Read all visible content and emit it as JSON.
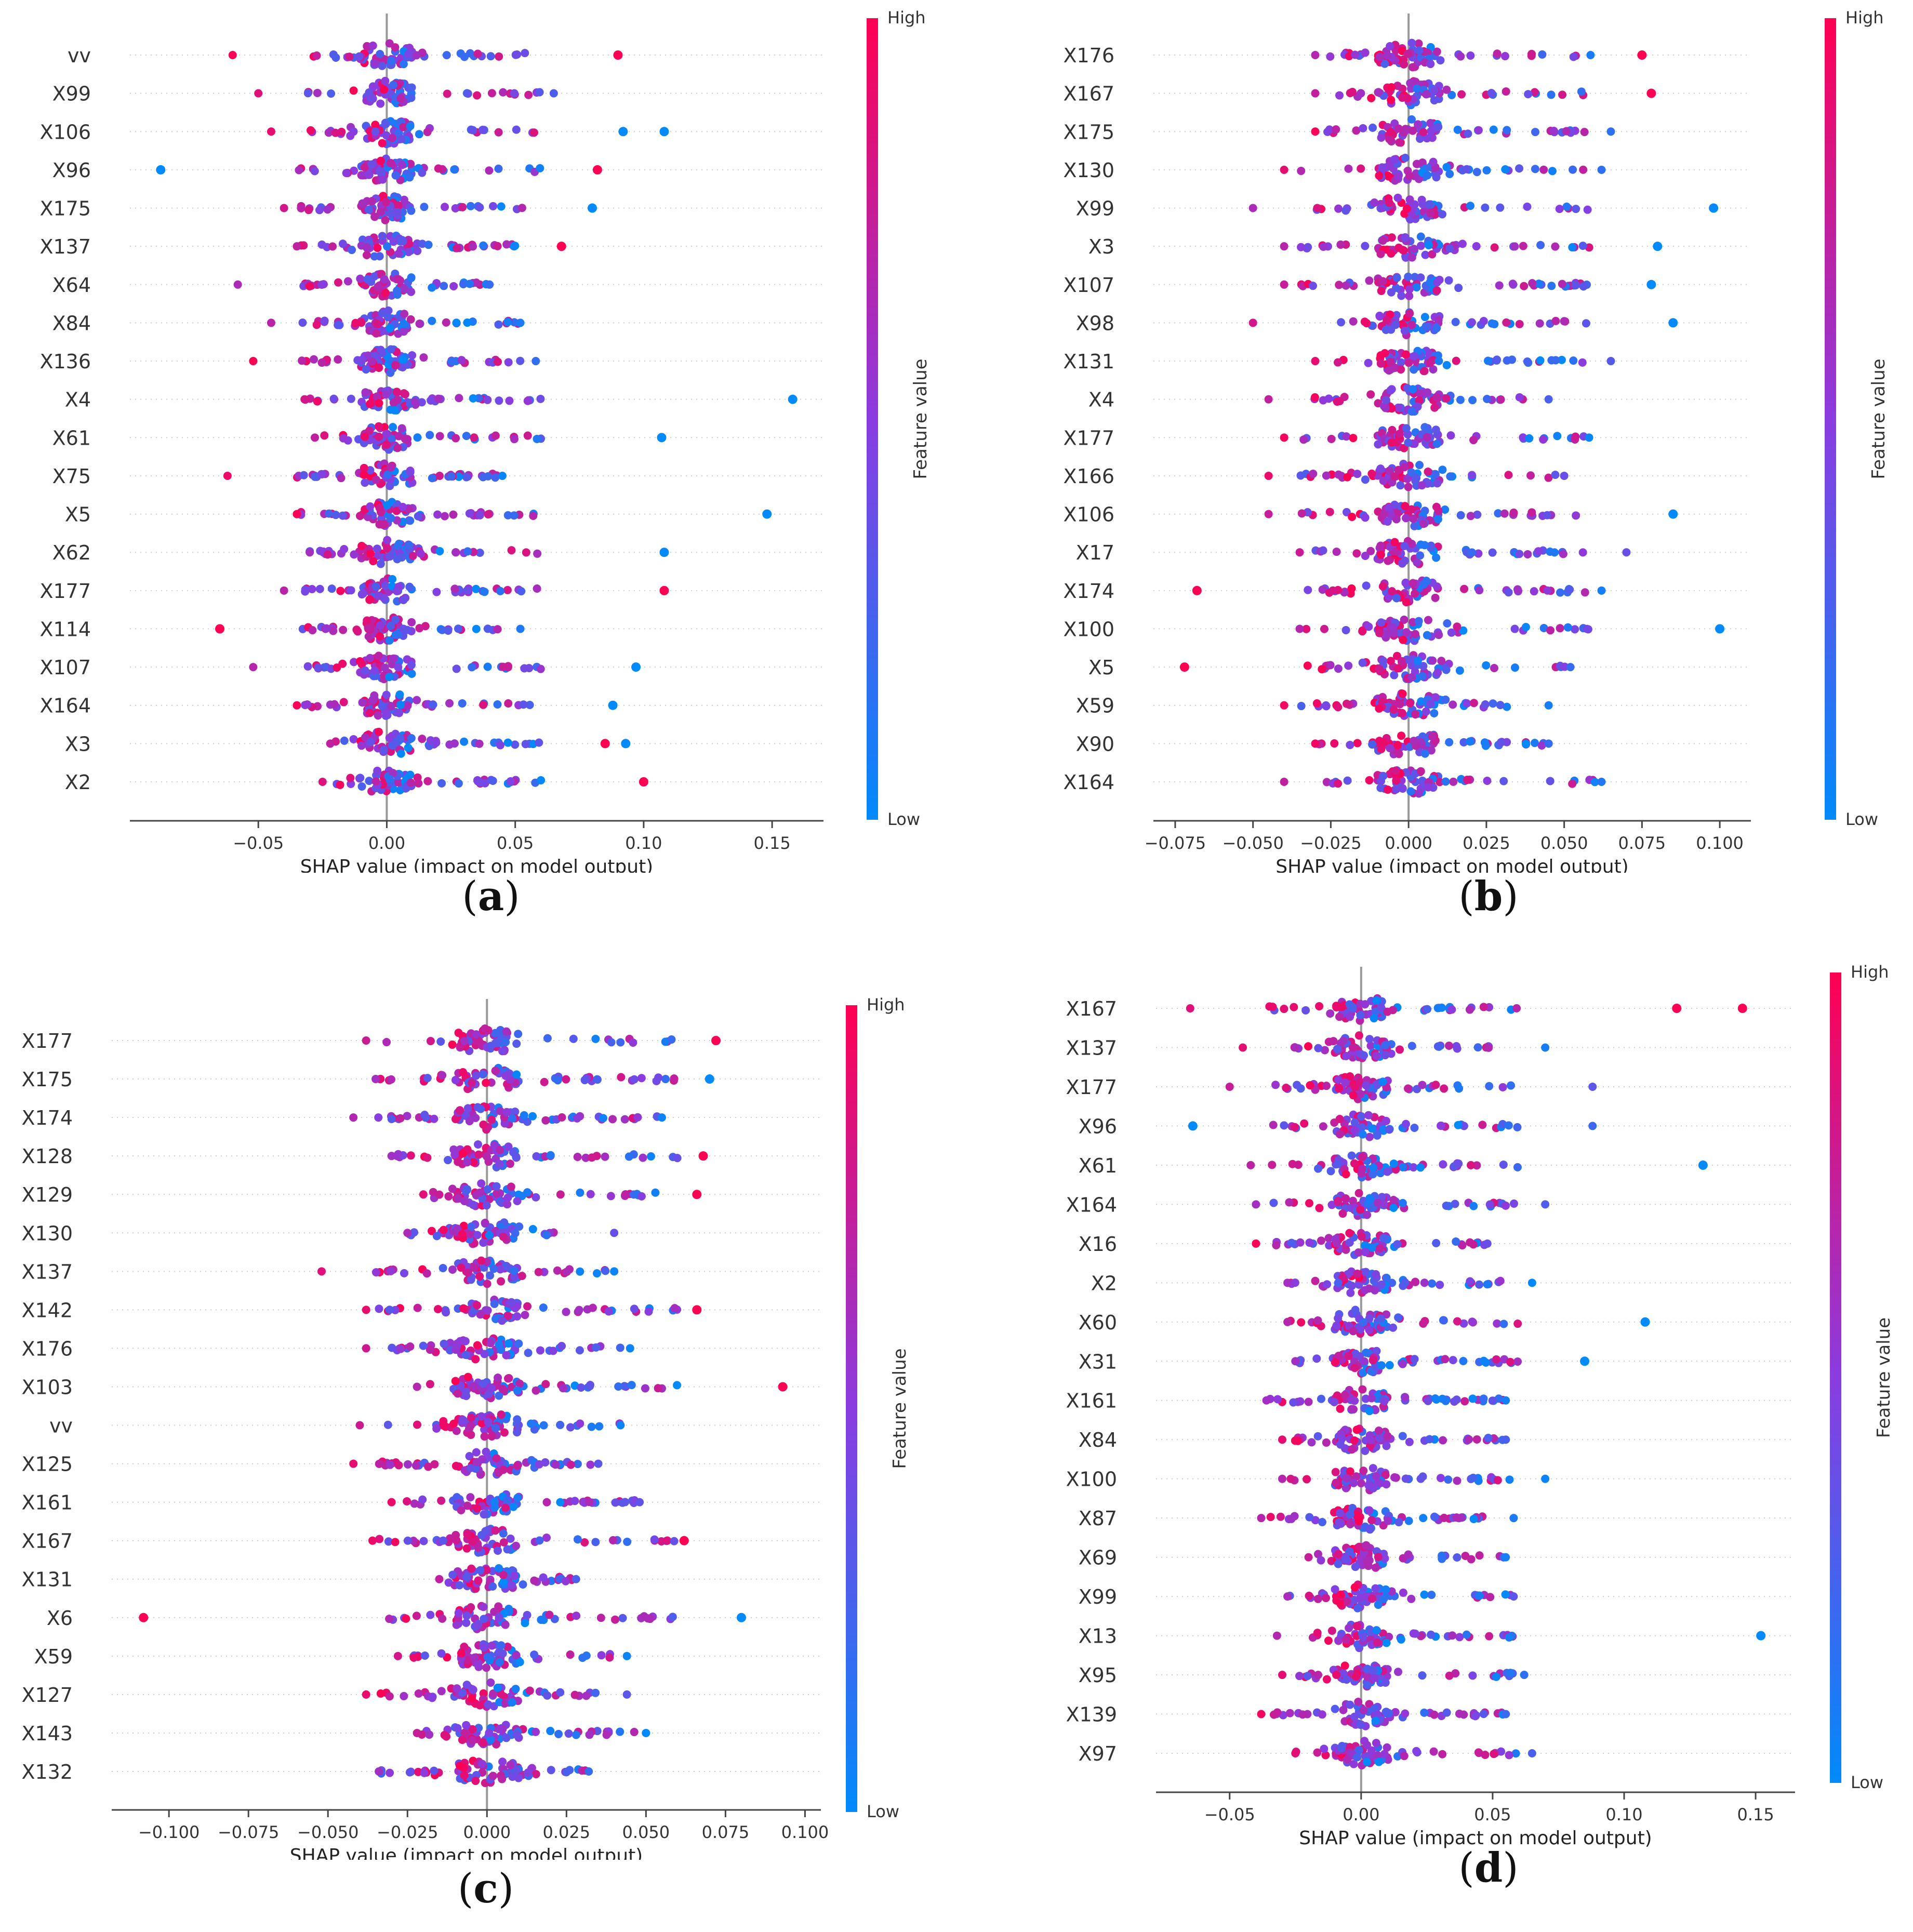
{
  "colors": {
    "high": "#ff0052",
    "mid": "#8a3ce0",
    "low": "#008afb",
    "zero_line": "#999999",
    "grid_dots": "#cccccc"
  },
  "colorbar": {
    "high_label": "High",
    "low_label": "Low",
    "title": "Feature value"
  },
  "chart_data": [
    {
      "type": "scatter",
      "panel_label": "a",
      "xlabel": "SHAP value (impact on model output)",
      "xlim": [
        -0.1,
        0.17
      ],
      "ticks": [
        -0.05,
        0.0,
        0.05,
        0.1,
        0.15
      ],
      "tick_labels": [
        "−0.05",
        "0.00",
        "0.05",
        "0.10",
        "0.15"
      ],
      "features": [
        {
          "name": "vv",
          "min": -0.06,
          "max": 0.09,
          "outliers": [
            {
              "v": 0.09,
              "h": "high"
            }
          ]
        },
        {
          "name": "X99",
          "min": -0.05,
          "max": 0.065,
          "outliers": []
        },
        {
          "name": "X106",
          "min": -0.045,
          "max": 0.108,
          "outliers": [
            {
              "v": 0.092,
              "h": "low"
            },
            {
              "v": 0.108,
              "h": "low"
            }
          ]
        },
        {
          "name": "X96",
          "min": -0.088,
          "max": 0.082,
          "outliers": [
            {
              "v": -0.088,
              "h": "low"
            },
            {
              "v": 0.082,
              "h": "high"
            }
          ]
        },
        {
          "name": "X175",
          "min": -0.04,
          "max": 0.08,
          "outliers": [
            {
              "v": 0.08,
              "h": "low"
            }
          ]
        },
        {
          "name": "X137",
          "min": -0.035,
          "max": 0.068,
          "outliers": [
            {
              "v": 0.068,
              "h": "high"
            }
          ]
        },
        {
          "name": "X64",
          "min": -0.058,
          "max": 0.04,
          "outliers": []
        },
        {
          "name": "X84",
          "min": -0.045,
          "max": 0.052,
          "outliers": []
        },
        {
          "name": "X136",
          "min": -0.052,
          "max": 0.058,
          "outliers": []
        },
        {
          "name": "X4",
          "min": -0.032,
          "max": 0.158,
          "outliers": [
            {
              "v": 0.158,
              "h": "low"
            }
          ]
        },
        {
          "name": "X61",
          "min": -0.028,
          "max": 0.107,
          "outliers": [
            {
              "v": 0.107,
              "h": "low"
            }
          ]
        },
        {
          "name": "X75",
          "min": -0.062,
          "max": 0.045,
          "outliers": []
        },
        {
          "name": "X5",
          "min": -0.035,
          "max": 0.148,
          "outliers": [
            {
              "v": 0.148,
              "h": "low"
            }
          ]
        },
        {
          "name": "X62",
          "min": -0.03,
          "max": 0.108,
          "outliers": [
            {
              "v": 0.108,
              "h": "low"
            }
          ]
        },
        {
          "name": "X177",
          "min": -0.04,
          "max": 0.108,
          "outliers": [
            {
              "v": 0.108,
              "h": "high"
            }
          ]
        },
        {
          "name": "X114",
          "min": -0.065,
          "max": 0.052,
          "outliers": [
            {
              "v": -0.065,
              "h": "high"
            }
          ]
        },
        {
          "name": "X107",
          "min": -0.052,
          "max": 0.097,
          "outliers": [
            {
              "v": 0.097,
              "h": "low"
            }
          ]
        },
        {
          "name": "X164",
          "min": -0.035,
          "max": 0.088,
          "outliers": [
            {
              "v": 0.088,
              "h": "low"
            }
          ]
        },
        {
          "name": "X3",
          "min": -0.022,
          "max": 0.093,
          "outliers": [
            {
              "v": 0.085,
              "h": "high"
            },
            {
              "v": 0.093,
              "h": "low"
            }
          ]
        },
        {
          "name": "X2",
          "min": -0.025,
          "max": 0.1,
          "outliers": [
            {
              "v": 0.1,
              "h": "high"
            }
          ]
        }
      ]
    },
    {
      "type": "scatter",
      "panel_label": "b",
      "xlabel": "SHAP value (impact on model output)",
      "xlim": [
        -0.082,
        0.11
      ],
      "ticks": [
        -0.075,
        -0.05,
        -0.025,
        0.0,
        0.025,
        0.05,
        0.075,
        0.1
      ],
      "tick_labels": [
        "−0.075",
        "−0.050",
        "−0.025",
        "0.000",
        "0.025",
        "0.050",
        "0.075",
        "0.100"
      ],
      "features": [
        {
          "name": "X176",
          "min": -0.03,
          "max": 0.075,
          "outliers": [
            {
              "v": 0.075,
              "h": "high"
            }
          ]
        },
        {
          "name": "X167",
          "min": -0.03,
          "max": 0.078,
          "outliers": [
            {
              "v": 0.078,
              "h": "high"
            }
          ]
        },
        {
          "name": "X175",
          "min": -0.03,
          "max": 0.065,
          "outliers": []
        },
        {
          "name": "X130",
          "min": -0.04,
          "max": 0.062,
          "outliers": []
        },
        {
          "name": "X99",
          "min": -0.05,
          "max": 0.098,
          "outliers": [
            {
              "v": 0.098,
              "h": "low"
            }
          ]
        },
        {
          "name": "X3",
          "min": -0.04,
          "max": 0.08,
          "outliers": [
            {
              "v": 0.08,
              "h": "low"
            }
          ]
        },
        {
          "name": "X107",
          "min": -0.04,
          "max": 0.078,
          "outliers": [
            {
              "v": 0.078,
              "h": "low"
            }
          ]
        },
        {
          "name": "X98",
          "min": -0.05,
          "max": 0.085,
          "outliers": [
            {
              "v": 0.085,
              "h": "low"
            }
          ]
        },
        {
          "name": "X131",
          "min": -0.03,
          "max": 0.065,
          "outliers": []
        },
        {
          "name": "X4",
          "min": -0.045,
          "max": 0.045,
          "outliers": []
        },
        {
          "name": "X177",
          "min": -0.04,
          "max": 0.058,
          "outliers": []
        },
        {
          "name": "X166",
          "min": -0.045,
          "max": 0.05,
          "outliers": []
        },
        {
          "name": "X106",
          "min": -0.045,
          "max": 0.085,
          "outliers": [
            {
              "v": 0.085,
              "h": "low"
            }
          ]
        },
        {
          "name": "X17",
          "min": -0.035,
          "max": 0.07,
          "outliers": []
        },
        {
          "name": "X174",
          "min": -0.068,
          "max": 0.062,
          "outliers": [
            {
              "v": -0.068,
              "h": "high"
            }
          ]
        },
        {
          "name": "X100",
          "min": -0.035,
          "max": 0.1,
          "outliers": [
            {
              "v": 0.1,
              "h": "low"
            }
          ]
        },
        {
          "name": "X5",
          "min": -0.072,
          "max": 0.052,
          "outliers": [
            {
              "v": -0.072,
              "h": "high"
            }
          ]
        },
        {
          "name": "X59",
          "min": -0.04,
          "max": 0.045,
          "outliers": []
        },
        {
          "name": "X90",
          "min": -0.03,
          "max": 0.045,
          "outliers": []
        },
        {
          "name": "X164",
          "min": -0.04,
          "max": 0.062,
          "outliers": []
        }
      ]
    },
    {
      "type": "scatter",
      "panel_label": "c",
      "xlabel": "SHAP value (impact on model output)",
      "xlim": [
        -0.118,
        0.105
      ],
      "ticks": [
        -0.1,
        -0.075,
        -0.05,
        -0.025,
        0.0,
        0.025,
        0.05,
        0.075,
        0.1
      ],
      "tick_labels": [
        "−0.100",
        "−0.075",
        "−0.050",
        "−0.025",
        "0.000",
        "0.025",
        "0.050",
        "0.075",
        "0.100"
      ],
      "features": [
        {
          "name": "X177",
          "min": -0.038,
          "max": 0.072,
          "outliers": [
            {
              "v": 0.072,
              "h": "high"
            }
          ]
        },
        {
          "name": "X175",
          "min": -0.035,
          "max": 0.07,
          "outliers": [
            {
              "v": 0.07,
              "h": "low"
            }
          ]
        },
        {
          "name": "X174",
          "min": -0.042,
          "max": 0.055,
          "outliers": []
        },
        {
          "name": "X128",
          "min": -0.03,
          "max": 0.068,
          "outliers": [
            {
              "v": 0.068,
              "h": "high"
            }
          ]
        },
        {
          "name": "X129",
          "min": -0.02,
          "max": 0.066,
          "outliers": [
            {
              "v": 0.066,
              "h": "high"
            }
          ]
        },
        {
          "name": "X130",
          "min": -0.025,
          "max": 0.04,
          "outliers": []
        },
        {
          "name": "X137",
          "min": -0.052,
          "max": 0.04,
          "outliers": []
        },
        {
          "name": "X142",
          "min": -0.038,
          "max": 0.066,
          "outliers": [
            {
              "v": 0.066,
              "h": "high"
            }
          ]
        },
        {
          "name": "X176",
          "min": -0.038,
          "max": 0.045,
          "outliers": []
        },
        {
          "name": "X103",
          "min": -0.022,
          "max": 0.093,
          "outliers": [
            {
              "v": 0.093,
              "h": "high"
            }
          ]
        },
        {
          "name": "vv",
          "min": -0.04,
          "max": 0.042,
          "outliers": []
        },
        {
          "name": "X125",
          "min": -0.042,
          "max": 0.035,
          "outliers": []
        },
        {
          "name": "X161",
          "min": -0.03,
          "max": 0.048,
          "outliers": []
        },
        {
          "name": "X167",
          "min": -0.036,
          "max": 0.062,
          "outliers": [
            {
              "v": 0.062,
              "h": "high"
            }
          ]
        },
        {
          "name": "X131",
          "min": -0.015,
          "max": 0.028,
          "outliers": []
        },
        {
          "name": "X6",
          "min": -0.108,
          "max": 0.08,
          "outliers": [
            {
              "v": -0.108,
              "h": "high"
            },
            {
              "v": 0.08,
              "h": "low"
            }
          ]
        },
        {
          "name": "X59",
          "min": -0.028,
          "max": 0.044,
          "outliers": []
        },
        {
          "name": "X127",
          "min": -0.038,
          "max": 0.044,
          "outliers": []
        },
        {
          "name": "X143",
          "min": -0.022,
          "max": 0.05,
          "outliers": []
        },
        {
          "name": "X132",
          "min": -0.034,
          "max": 0.032,
          "outliers": []
        }
      ]
    },
    {
      "type": "scatter",
      "panel_label": "d",
      "xlabel": "SHAP value (impact on model output)",
      "xlim": [
        -0.078,
        0.165
      ],
      "ticks": [
        -0.05,
        0.0,
        0.05,
        0.1,
        0.15
      ],
      "tick_labels": [
        "−0.05",
        "0.00",
        "0.05",
        "0.10",
        "0.15"
      ],
      "features": [
        {
          "name": "X167",
          "min": -0.065,
          "max": 0.145,
          "outliers": [
            {
              "v": 0.145,
              "h": "high"
            },
            {
              "v": 0.12,
              "h": "high"
            }
          ]
        },
        {
          "name": "X137",
          "min": -0.045,
          "max": 0.07,
          "outliers": []
        },
        {
          "name": "X177",
          "min": -0.05,
          "max": 0.088,
          "outliers": []
        },
        {
          "name": "X96",
          "min": -0.064,
          "max": 0.088,
          "outliers": [
            {
              "v": -0.064,
              "h": "low"
            }
          ]
        },
        {
          "name": "X61",
          "min": -0.042,
          "max": 0.13,
          "outliers": [
            {
              "v": 0.13,
              "h": "low"
            }
          ]
        },
        {
          "name": "X164",
          "min": -0.04,
          "max": 0.07,
          "outliers": []
        },
        {
          "name": "X16",
          "min": -0.04,
          "max": 0.048,
          "outliers": []
        },
        {
          "name": "X2",
          "min": -0.028,
          "max": 0.065,
          "outliers": []
        },
        {
          "name": "X60",
          "min": -0.028,
          "max": 0.108,
          "outliers": [
            {
              "v": 0.108,
              "h": "low"
            }
          ]
        },
        {
          "name": "X31",
          "min": -0.025,
          "max": 0.085,
          "outliers": [
            {
              "v": 0.085,
              "h": "low"
            }
          ]
        },
        {
          "name": "X161",
          "min": -0.036,
          "max": 0.055,
          "outliers": []
        },
        {
          "name": "X84",
          "min": -0.03,
          "max": 0.055,
          "outliers": []
        },
        {
          "name": "X100",
          "min": -0.03,
          "max": 0.07,
          "outliers": []
        },
        {
          "name": "X87",
          "min": -0.038,
          "max": 0.058,
          "outliers": []
        },
        {
          "name": "X69",
          "min": -0.02,
          "max": 0.055,
          "outliers": []
        },
        {
          "name": "X99",
          "min": -0.028,
          "max": 0.058,
          "outliers": []
        },
        {
          "name": "X13",
          "min": -0.032,
          "max": 0.152,
          "outliers": [
            {
              "v": 0.152,
              "h": "low"
            }
          ]
        },
        {
          "name": "X95",
          "min": -0.03,
          "max": 0.062,
          "outliers": []
        },
        {
          "name": "X139",
          "min": -0.038,
          "max": 0.055,
          "outliers": []
        },
        {
          "name": "X97",
          "min": -0.025,
          "max": 0.065,
          "outliers": []
        }
      ]
    }
  ]
}
